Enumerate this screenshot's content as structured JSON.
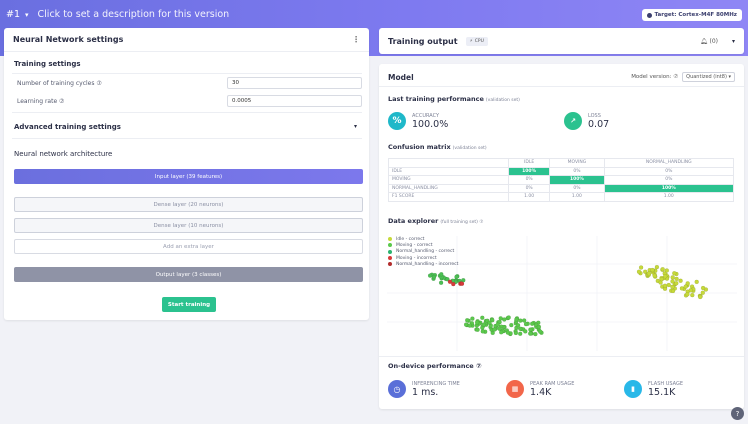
{
  "topbar": {
    "version": "#1",
    "version_caret": "▾",
    "description": "Click to set a description for this version",
    "target": "Target: Cortex-M4F 80MHz"
  },
  "nn": {
    "title": "Neural Network settings",
    "kebab": "⋮",
    "training_settings": "Training settings",
    "cycles_label": "Number of training cycles ⑦",
    "cycles_value": "30",
    "lr_label": "Learning rate ⑦",
    "lr_value": "0.0005",
    "advanced": "Advanced training settings",
    "advanced_caret": "▾",
    "arch_title": "Neural network architecture",
    "layers": {
      "input": "Input layer (39 features)",
      "dense1": "Dense layer (20 neurons)",
      "dense2": "Dense layer (10 neurons)",
      "add": "Add an extra layer",
      "output": "Output layer (3 classes)"
    },
    "start": "Start training"
  },
  "output": {
    "title": "Training output",
    "cpu": "CPU",
    "counter": "(0)",
    "dropdown": "▾"
  },
  "model": {
    "title": "Model",
    "version_label": "Model version: ⑦",
    "version_value": "Quantized (int8) ▾",
    "last_perf": "Last training performance",
    "last_perf_note": "(validation set)",
    "accuracy_label": "ACCURACY",
    "accuracy_value": "100.0%",
    "loss_label": "LOSS",
    "loss_value": "0.07",
    "cm_title": "Confusion matrix",
    "cm_note": "(validation set)",
    "cm": {
      "headers": [
        "",
        "IDLE",
        "MOVING",
        "NORMAL_HANDLING"
      ],
      "rows": [
        [
          "IDLE",
          "100%",
          "0%",
          "0%"
        ],
        [
          "MOVING",
          "0%",
          "100%",
          "0%"
        ],
        [
          "NORMAL_HANDLING",
          "0%",
          "0%",
          "100%"
        ],
        [
          "F1 SCORE",
          "1.00",
          "1.00",
          "1.00"
        ]
      ]
    },
    "explorer_title": "Data explorer",
    "explorer_note": "(full training set) ⑦",
    "legend": [
      {
        "label": "Idle - correct",
        "color": "#c6d93a"
      },
      {
        "label": "Moving - correct",
        "color": "#5bc84c"
      },
      {
        "label": "Normal_handling - correct",
        "color": "#2bb36f"
      },
      {
        "label": "Moving - incorrect",
        "color": "#d83a3a"
      },
      {
        "label": "Normal_handling - incorrect",
        "color": "#b32d2d"
      }
    ],
    "ondevice_title": "On-device performance ⑦",
    "inference_label": "INFERENCING TIME",
    "inference_value": "1 ms.",
    "ram_label": "PEAK RAM USAGE",
    "ram_value": "1.4K",
    "flash_label": "FLASH USAGE",
    "flash_value": "15.1K"
  },
  "colors": {
    "accent": "#6c70e0",
    "success": "#2bc28f",
    "ram": "#f2664a",
    "flash": "#29b8e8",
    "time": "#5a6fd8"
  },
  "help_icon": "?"
}
